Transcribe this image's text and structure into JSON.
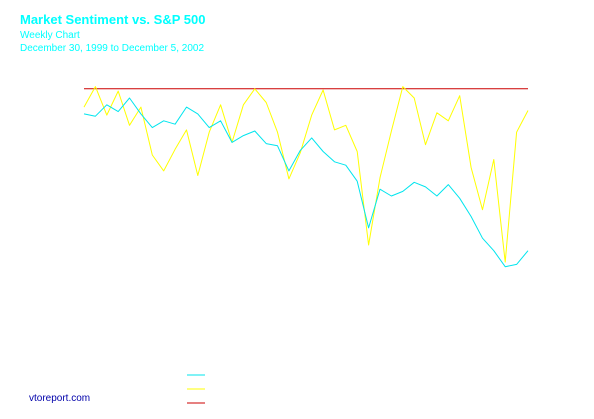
{
  "title": "Market Sentiment vs. S&P 500",
  "subtitle": "Weekly Chart",
  "date_range": "December 30, 1999 to December 5, 2002",
  "source": "vtoreport.com",
  "colors": {
    "sp500": "#00e5ee",
    "sentiment": "#ffff00",
    "reference": "#cc0000",
    "title": "#00ffff",
    "source": "#0000aa",
    "background": "#ffffff"
  },
  "chart_data": {
    "type": "line",
    "title": "Market Sentiment vs. S&P 500",
    "subtitle": "Weekly Chart",
    "xlabel": "",
    "ylabel": "",
    "grid": false,
    "legend": "bottom-center",
    "x": [
      0,
      4,
      8,
      12,
      16,
      20,
      24,
      28,
      32,
      36,
      40,
      44,
      48,
      52,
      56,
      60,
      64,
      68,
      72,
      76,
      80,
      84,
      88,
      92,
      96,
      100,
      104,
      108,
      112,
      116,
      120,
      124,
      128,
      132,
      136,
      140,
      144,
      148,
      152,
      156
    ],
    "xlim": [
      0,
      156
    ],
    "ylim": [
      -1,
      1
    ],
    "series": [
      {
        "key": "sp500",
        "values": [
          0.72,
          0.7,
          0.8,
          0.74,
          0.86,
          0.72,
          0.6,
          0.66,
          0.63,
          0.78,
          0.72,
          0.6,
          0.66,
          0.47,
          0.53,
          0.57,
          0.46,
          0.44,
          0.22,
          0.4,
          0.51,
          0.39,
          0.3,
          0.27,
          0.13,
          -0.28,
          0.06,
          0.0,
          0.04,
          0.12,
          0.08,
          0.0,
          0.1,
          -0.02,
          -0.18,
          -0.37,
          -0.48,
          -0.62,
          -0.6,
          -0.48
        ]
      },
      {
        "key": "sentiment",
        "values": [
          0.78,
          0.96,
          0.71,
          0.92,
          0.62,
          0.78,
          0.36,
          0.22,
          0.41,
          0.58,
          0.18,
          0.56,
          0.8,
          0.47,
          0.8,
          0.94,
          0.82,
          0.56,
          0.15,
          0.38,
          0.71,
          0.93,
          0.58,
          0.62,
          0.39,
          -0.43,
          0.16,
          0.57,
          0.96,
          0.86,
          0.45,
          0.73,
          0.66,
          0.88,
          0.25,
          -0.12,
          0.32,
          -0.58,
          0.56,
          0.75
        ]
      },
      {
        "key": "reference",
        "values": [
          0.94,
          0.94,
          0.94,
          0.94,
          0.94,
          0.94,
          0.94,
          0.94,
          0.94,
          0.94,
          0.94,
          0.94,
          0.94,
          0.94,
          0.94,
          0.94,
          0.94,
          0.94,
          0.94,
          0.94,
          0.94,
          0.94,
          0.94,
          0.94,
          0.94,
          0.94,
          0.94,
          0.94,
          0.94,
          0.94,
          0.94,
          0.94,
          0.94,
          0.94,
          0.94,
          0.94,
          0.94,
          0.94,
          0.94,
          0.94
        ]
      }
    ]
  }
}
